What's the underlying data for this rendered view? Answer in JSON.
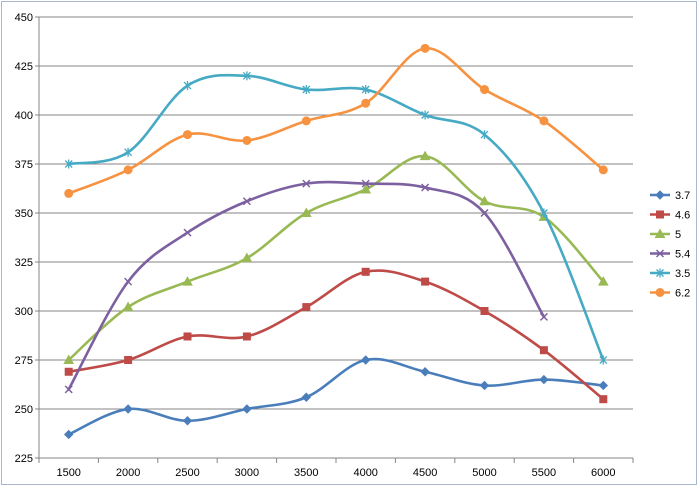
{
  "chart_data": {
    "type": "line",
    "title": "",
    "xlabel": "",
    "ylabel": "",
    "x": [
      1500,
      2000,
      2500,
      3000,
      3500,
      4000,
      4500,
      5000,
      5500,
      6000
    ],
    "x_tick_labels": [
      "1500",
      "2000",
      "2500",
      "3000",
      "3500",
      "4000",
      "4500",
      "5000",
      "5500",
      "6000"
    ],
    "ylim": [
      225,
      450
    ],
    "y_ticks": [
      225,
      250,
      275,
      300,
      325,
      350,
      375,
      400,
      425,
      450
    ],
    "y_tick_labels": [
      "225",
      "250",
      "275",
      "300",
      "325",
      "350",
      "375",
      "400",
      "425",
      "450"
    ],
    "grid": "horizontal",
    "legend_position": "right",
    "series": [
      {
        "name": "3.7",
        "color": "#4a7ebb",
        "marker": "diamond",
        "values": [
          237,
          250,
          244,
          250,
          256,
          275,
          269,
          262,
          265,
          262
        ]
      },
      {
        "name": "4.6",
        "color": "#be4b48",
        "marker": "square",
        "values": [
          269,
          275,
          287,
          287,
          302,
          320,
          315,
          300,
          280,
          255
        ]
      },
      {
        "name": "5",
        "color": "#98b954",
        "marker": "triangle",
        "values": [
          275,
          302,
          315,
          327,
          350,
          362,
          379,
          356,
          348,
          315
        ]
      },
      {
        "name": "5.4",
        "color": "#7d60a0",
        "marker": "x",
        "values": [
          260,
          315,
          340,
          356,
          365,
          365,
          363,
          350,
          297,
          null
        ]
      },
      {
        "name": "3.5",
        "color": "#46aac5",
        "marker": "star",
        "values": [
          375,
          381,
          415,
          420,
          413,
          413,
          400,
          390,
          350,
          275
        ]
      },
      {
        "name": "6.2",
        "color": "#f69240",
        "marker": "circle",
        "values": [
          360,
          372,
          390,
          387,
          397,
          406,
          434,
          413,
          397,
          372
        ]
      }
    ]
  }
}
